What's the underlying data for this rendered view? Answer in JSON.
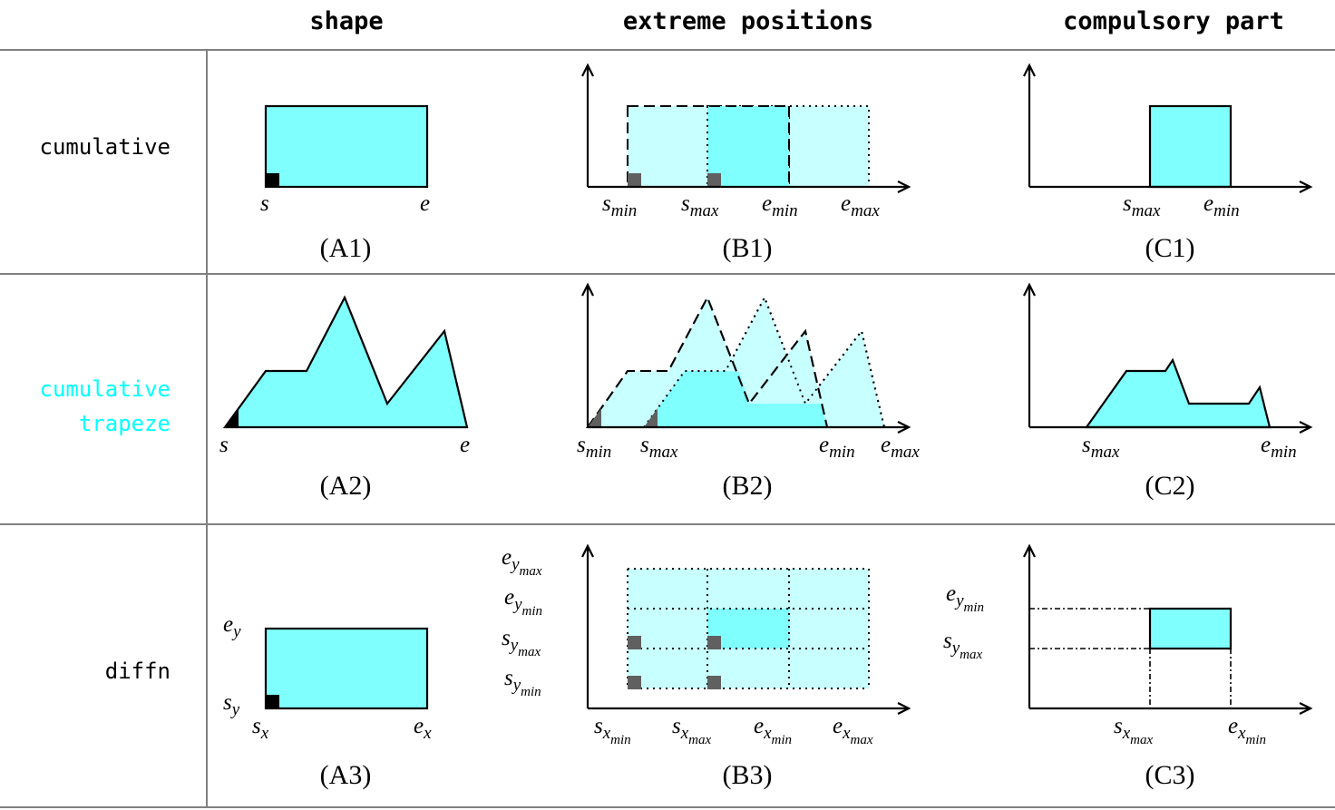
{
  "headers": {
    "shape": "shape",
    "extreme": "extreme positions",
    "compulsory": "compulsory part"
  },
  "rows": {
    "r1": {
      "label": "cumulative"
    },
    "r2": {
      "label_line1": "cumulative",
      "label_line2": "trapeze"
    },
    "r3": {
      "label": "diffn"
    }
  },
  "captions": {
    "A1": "(A1)",
    "B1": "(B1)",
    "C1": "(C1)",
    "A2": "(A2)",
    "B2": "(B2)",
    "C2": "(C2)",
    "A3": "(A3)",
    "B3": "(B3)",
    "C3": "(C3)"
  },
  "labels": {
    "s": "s",
    "e": "e",
    "x": "x",
    "y": "y",
    "min": "min",
    "max": "max"
  },
  "colors": {
    "fill": "#80ffff",
    "fill_light": "#c8ffff",
    "trapeze_label": "#00ffff",
    "grid": "#808080",
    "marker_dark": "#000000",
    "marker_gray": "#606060"
  }
}
